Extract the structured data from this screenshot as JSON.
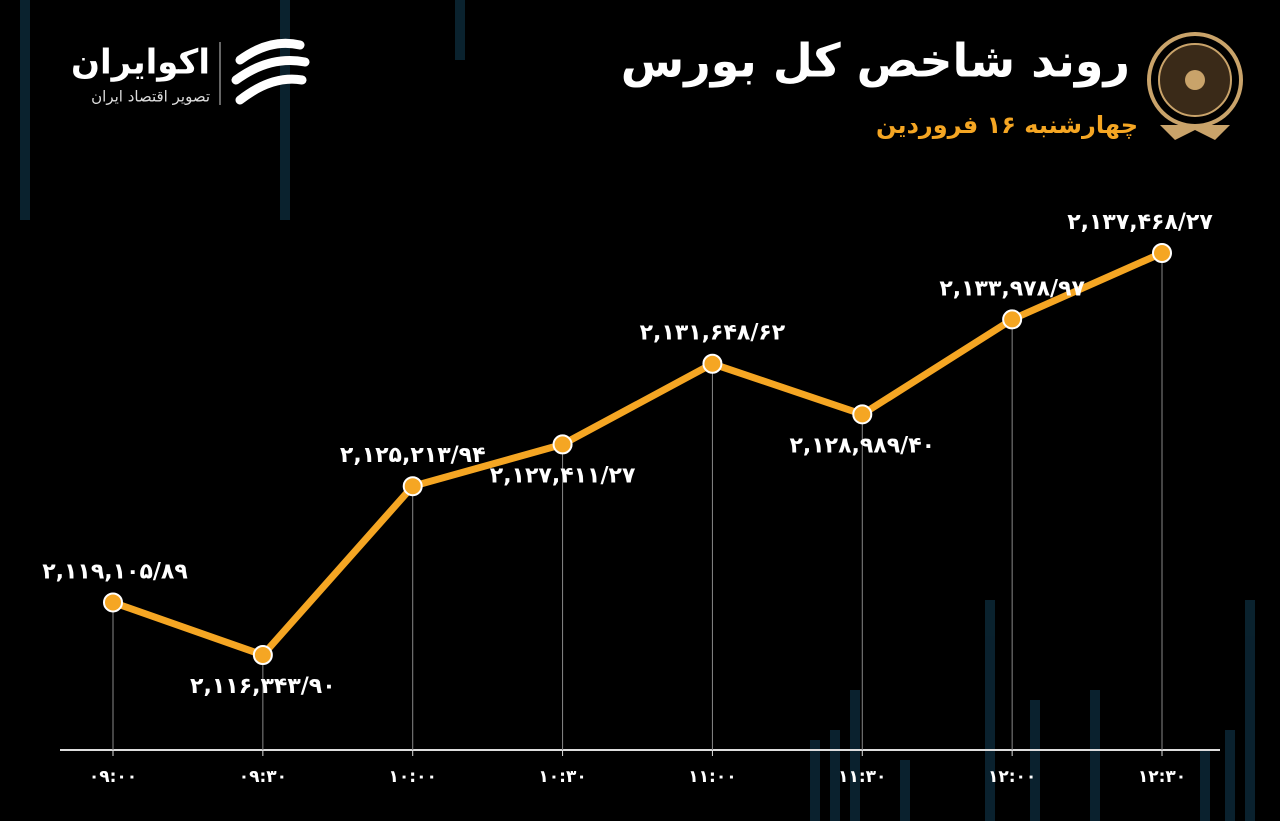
{
  "brand": {
    "name": "اکوایران",
    "tagline": "تصویر اقتصاد ایران"
  },
  "chart_data": {
    "type": "line",
    "title": "روند شاخص کل بورس",
    "subtitle": "چهارشنبه ۱۶ فروردین",
    "categories": [
      "۰۹:۰۰",
      "۰۹:۳۰",
      "۱۰:۰۰",
      "۱۰:۳۰",
      "۱۱:۰۰",
      "۱۱:۳۰",
      "۱۲:۰۰",
      "۱۲:۳۰"
    ],
    "values": [
      2119105.89,
      2116343.9,
      2125213.94,
      2127411.27,
      2131648.62,
      2128989.4,
      2133978.97,
      2137468.27
    ],
    "value_labels": [
      "۲,۱۱۹,۱۰۵/۸۹",
      "۲,۱۱۶,۳۴۳/۹۰",
      "۲,۱۲۵,۲۱۳/۹۴",
      "۲,۱۲۷,۴۱۱/۲۷",
      "۲,۱۳۱,۶۴۸/۶۲",
      "۲,۱۲۸,۹۸۹/۴۰",
      "۲,۱۳۳,۹۷۸/۹۷",
      "۲,۱۳۷,۴۶۸/۲۷"
    ],
    "color": "#f5a623"
  }
}
